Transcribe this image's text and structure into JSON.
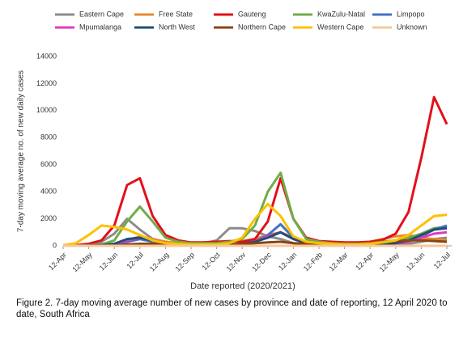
{
  "chart_data": {
    "type": "line",
    "y_label": "7-day moving average no. of new daily cases",
    "x_label": "Date reported (2020/2021)",
    "caption": "Figure 2. 7-day moving average number of new cases by province and date of reporting, 12 April 2020 to date, South Africa",
    "categories": [
      "12-Apr",
      null,
      "12-May",
      null,
      "12-Jun",
      null,
      "12-Jul",
      null,
      "12-Aug",
      null,
      "12-Sep",
      null,
      "12-Oct",
      null,
      "12-Nov",
      null,
      "12-Dec",
      null,
      "12-Jan",
      null,
      "12-Feb",
      null,
      "12-Mar",
      null,
      "12-Apr",
      null,
      "12-May",
      null,
      "12-Jun",
      null,
      "12-Jul"
    ],
    "ylim": [
      0,
      14000
    ],
    "yticks": [
      0,
      2000,
      4000,
      6000,
      8000,
      10000,
      12000,
      14000
    ],
    "grid": false,
    "series": [
      {
        "name": "Eastern Cape",
        "color": "#8c8c8c",
        "values": [
          0,
          30,
          80,
          300,
          900,
          2000,
          1200,
          500,
          300,
          200,
          150,
          200,
          400,
          1300,
          1300,
          1100,
          700,
          500,
          200,
          100,
          80,
          60,
          50,
          50,
          60,
          80,
          100,
          150,
          300,
          500,
          600
        ]
      },
      {
        "name": "Free State",
        "color": "#e8892c",
        "values": [
          0,
          0,
          10,
          30,
          100,
          400,
          700,
          500,
          300,
          200,
          150,
          250,
          300,
          300,
          350,
          500,
          800,
          1000,
          600,
          300,
          200,
          150,
          150,
          200,
          300,
          500,
          700,
          800,
          600,
          500,
          400
        ]
      },
      {
        "name": "Gauteng",
        "color": "#e3101b",
        "values": [
          20,
          50,
          150,
          400,
          1500,
          4500,
          5000,
          2200,
          800,
          400,
          250,
          250,
          300,
          350,
          300,
          500,
          1800,
          5000,
          2000,
          600,
          350,
          300,
          250,
          250,
          300,
          450,
          900,
          2500,
          6500,
          11000,
          9000
        ]
      },
      {
        "name": "KwaZulu-Natal",
        "color": "#70ad47",
        "values": [
          0,
          20,
          50,
          100,
          400,
          1800,
          2900,
          1800,
          600,
          300,
          200,
          200,
          200,
          300,
          500,
          1500,
          4000,
          5400,
          2000,
          500,
          300,
          200,
          150,
          150,
          200,
          300,
          400,
          600,
          900,
          1300,
          1400
        ]
      },
      {
        "name": "Limpopo",
        "color": "#4472c4",
        "values": [
          0,
          0,
          10,
          50,
          100,
          300,
          500,
          300,
          150,
          80,
          50,
          50,
          50,
          60,
          100,
          300,
          800,
          1600,
          600,
          200,
          100,
          60,
          50,
          50,
          60,
          80,
          150,
          300,
          700,
          1200,
          1500
        ]
      },
      {
        "name": "Mpumalanga",
        "color": "#e03ac4",
        "values": [
          0,
          0,
          10,
          40,
          100,
          400,
          600,
          400,
          200,
          100,
          60,
          50,
          50,
          60,
          100,
          300,
          700,
          1000,
          500,
          200,
          100,
          60,
          50,
          50,
          60,
          80,
          150,
          300,
          600,
          900,
          1000
        ]
      },
      {
        "name": "North West",
        "color": "#1f4e79",
        "values": [
          0,
          0,
          10,
          40,
          150,
          500,
          600,
          400,
          200,
          100,
          60,
          50,
          60,
          80,
          150,
          300,
          600,
          1000,
          500,
          200,
          100,
          60,
          50,
          50,
          60,
          100,
          200,
          400,
          800,
          1200,
          1300
        ]
      },
      {
        "name": "Northern Cape",
        "color": "#8b4513",
        "values": [
          0,
          0,
          5,
          10,
          30,
          100,
          150,
          150,
          100,
          80,
          60,
          60,
          80,
          100,
          150,
          200,
          250,
          300,
          200,
          150,
          100,
          80,
          80,
          100,
          150,
          250,
          350,
          400,
          400,
          350,
          300
        ]
      },
      {
        "name": "Western Cape",
        "color": "#ffc000",
        "values": [
          50,
          200,
          800,
          1500,
          1400,
          1200,
          800,
          400,
          200,
          150,
          100,
          100,
          100,
          200,
          600,
          2000,
          3100,
          2200,
          700,
          300,
          200,
          150,
          100,
          100,
          150,
          250,
          400,
          800,
          1500,
          2200,
          2300
        ]
      },
      {
        "name": "Unknown",
        "color": "#f5c89a",
        "values": [
          0,
          0,
          0,
          0,
          0,
          0,
          0,
          0,
          0,
          0,
          0,
          0,
          0,
          0,
          0,
          0,
          0,
          0,
          0,
          0,
          0,
          0,
          0,
          0,
          0,
          0,
          0,
          0,
          0,
          0,
          0
        ]
      }
    ]
  }
}
